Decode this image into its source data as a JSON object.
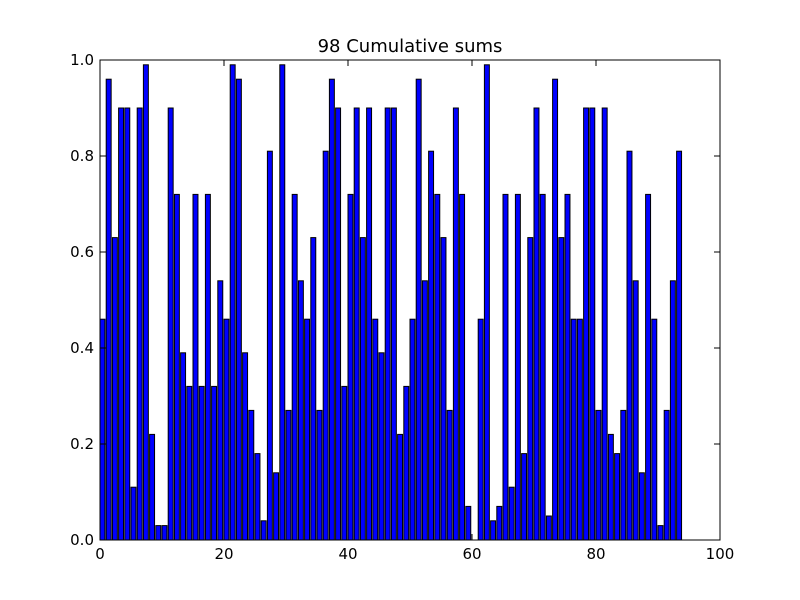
{
  "chart_data": {
    "type": "bar",
    "title": "98 Cumulative sums",
    "xlabel": "",
    "ylabel": "",
    "xlim": [
      0,
      100
    ],
    "ylim": [
      0,
      1.0
    ],
    "x_ticks": [
      "0",
      "20",
      "40",
      "60",
      "80",
      "100"
    ],
    "y_ticks": [
      "0.0",
      "0.2",
      "0.4",
      "0.6",
      "0.8",
      "1.0"
    ],
    "bar_color": "#0000ff",
    "edge_color": "#000000",
    "grid": false,
    "values": [
      0.46,
      0.96,
      0.63,
      0.9,
      0.9,
      0.11,
      0.9,
      0.99,
      0.22,
      0.03,
      0.03,
      0.9,
      0.72,
      0.39,
      0.32,
      0.72,
      0.32,
      0.72,
      0.32,
      0.54,
      0.46,
      0.99,
      0.96,
      0.39,
      0.27,
      0.18,
      0.04,
      0.81,
      0.14,
      0.99,
      0.27,
      0.72,
      0.54,
      0.46,
      0.63,
      0.27,
      0.81,
      0.96,
      0.9,
      0.32,
      0.72,
      0.9,
      0.63,
      0.9,
      0.46,
      0.39,
      0.9,
      0.9,
      0.22,
      0.32,
      0.46,
      0.96,
      0.54,
      0.81,
      0.72,
      0.63,
      0.27,
      0.9,
      0.72,
      0.07,
      0.0,
      0.46,
      0.99,
      0.04,
      0.07,
      0.72,
      0.11,
      0.72,
      0.18,
      0.63,
      0.9,
      0.72,
      0.05,
      0.96,
      0.63,
      0.72,
      0.46,
      0.46,
      0.9,
      0.9,
      0.27,
      0.9,
      0.22,
      0.18,
      0.27,
      0.81,
      0.54,
      0.14,
      0.72,
      0.46,
      0.03,
      0.27,
      0.54,
      0.81
    ]
  }
}
